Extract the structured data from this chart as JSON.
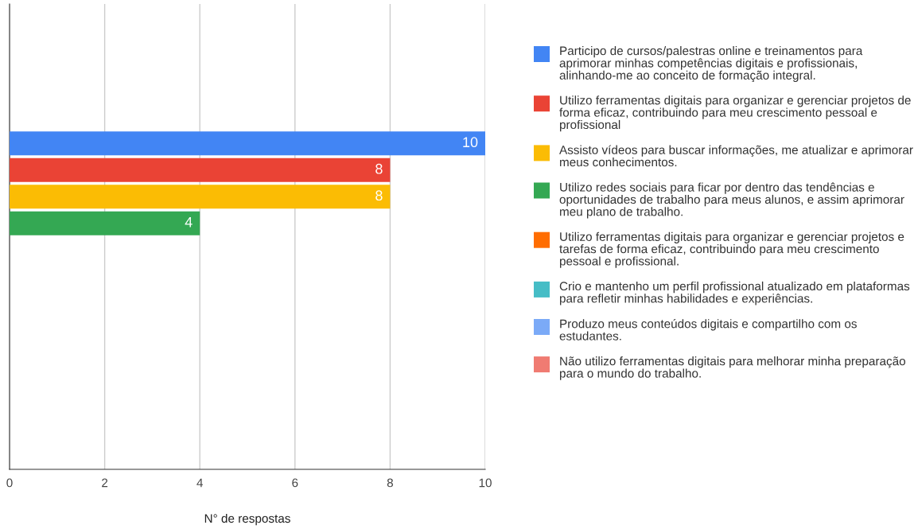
{
  "chart_data": {
    "type": "bar",
    "orientation": "horizontal",
    "xlabel": "N° de respostas",
    "categories": [
      null
    ],
    "series": [
      {
        "name": "Participo de cursos/palestras online e treinamentos para aprimorar minhas competências digitais e profissionais, alinhando-me ao conceito de formação integral.",
        "color": "#4285f4",
        "values": [
          10
        ]
      },
      {
        "name": "Utilizo ferramentas digitais para organizar e gerenciar projetos de forma eficaz, contribuindo para meu crescimento pessoal e profissional",
        "color": "#ea4335",
        "values": [
          8
        ]
      },
      {
        "name": "Assisto vídeos para buscar informações, me atualizar e aprimorar meus conhecimentos.",
        "color": "#fbbc04",
        "values": [
          8
        ]
      },
      {
        "name": "Utilizo redes sociais para ficar por dentro das tendências e oportunidades de trabalho para meus alunos, e assim aprimorar meu plano de trabalho.",
        "color": "#34a853",
        "values": [
          4
        ]
      },
      {
        "name": "Utilizo ferramentas digitais para organizar e gerenciar projetos e tarefas de forma eficaz, contribuindo para meu crescimento pessoal e profissional.",
        "color": "#ff6d01",
        "values": [
          null
        ]
      },
      {
        "name": "Crio e mantenho um perfil profissional atualizado em plataformas para refletir minhas habilidades e experiências.",
        "color": "#46bdc6",
        "values": [
          null
        ]
      },
      {
        "name": "Produzo meus conteúdos digitais e compartilho com os estudantes.",
        "color": "#7baaf7",
        "values": [
          null
        ]
      },
      {
        "name": "Não utilizo ferramentas digitais para melhorar minha preparação para o mundo do trabalho.",
        "color": "#f07b72",
        "values": [
          null
        ]
      }
    ],
    "xlim": [
      0,
      10
    ],
    "xticks": [
      0,
      2,
      4,
      6,
      8,
      10
    ],
    "grid": "x",
    "legend": "right",
    "data_labels": true
  }
}
